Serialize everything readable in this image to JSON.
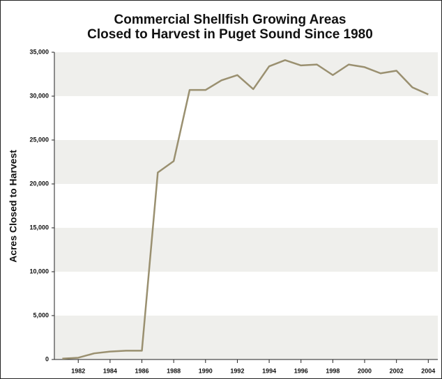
{
  "chart_data": {
    "type": "line",
    "title": [
      "Commercial Shellfish Growing Areas",
      "Closed to Harvest in Puget Sound Since 1980"
    ],
    "y_label": "Acres Closed to Harvest",
    "x": [
      1981,
      1982,
      1983,
      1984,
      1985,
      1986,
      1987,
      1988,
      1989,
      1990,
      1991,
      1992,
      1993,
      1994,
      1995,
      1996,
      1997,
      1998,
      1999,
      2000,
      2001,
      2002,
      2003,
      2004
    ],
    "series": [
      {
        "name": "Acres Closed to Harvest",
        "color": "#9a9070",
        "values": [
          100,
          200,
          700,
          900,
          1000,
          1000,
          21300,
          22600,
          30700,
          30700,
          31800,
          32400,
          30800,
          33400,
          34100,
          33500,
          33600,
          32400,
          33600,
          33300,
          32600,
          32900,
          31000,
          30200
        ]
      }
    ],
    "xlim": [
      1980.5,
      2004.6
    ],
    "xticks": [
      1982,
      1984,
      1986,
      1988,
      1990,
      1992,
      1994,
      1996,
      1998,
      2000,
      2002,
      2004
    ],
    "ylim": [
      0,
      35000
    ],
    "yticks": [
      0,
      {
        "value": 5000,
        "label": "5,000"
      },
      {
        "value": 10000,
        "label": "10,000"
      },
      {
        "value": 15000,
        "label": "15,000"
      },
      {
        "value": 20000,
        "label": "20,000"
      },
      {
        "value": 25000,
        "label": "25,000"
      },
      {
        "value": 30000,
        "label": "30,000"
      },
      {
        "value": 35000,
        "label": "35,000"
      }
    ],
    "grid": true,
    "band_color": "#efefec"
  }
}
